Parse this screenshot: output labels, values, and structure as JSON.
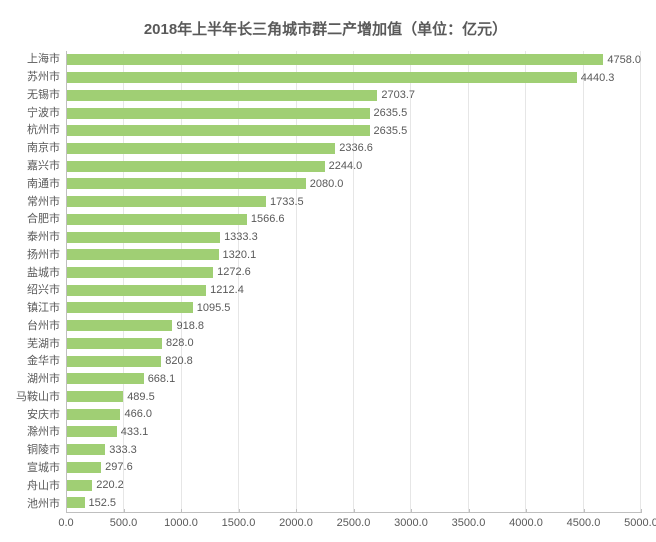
{
  "chart": {
    "type": "bar-horizontal",
    "title": "2018年上半年长三角城市群二产增加值（单位：亿元）",
    "title_fontsize": 15,
    "title_color": "#595959",
    "background_color": "#ffffff",
    "bar_color": "#a0cf74",
    "grid_color": "#e6e6e6",
    "axis_color": "#bfbfbf",
    "label_color": "#595959",
    "label_fontsize": 11,
    "xlim": [
      0,
      5000
    ],
    "xtick_step": 500,
    "xticks": [
      "0.0",
      "500.0",
      "1000.0",
      "1500.0",
      "2000.0",
      "2500.0",
      "3000.0",
      "3500.0",
      "4000.0",
      "4500.0",
      "5000.0"
    ],
    "categories": [
      "上海市",
      "苏州市",
      "无锡市",
      "宁波市",
      "杭州市",
      "南京市",
      "嘉兴市",
      "南通市",
      "常州市",
      "合肥市",
      "泰州市",
      "扬州市",
      "盐城市",
      "绍兴市",
      "镇江市",
      "台州市",
      "芜湖市",
      "金华市",
      "湖州市",
      "马鞍山市",
      "安庆市",
      "滁州市",
      "铜陵市",
      "宣城市",
      "舟山市",
      "池州市"
    ],
    "values": [
      4758.0,
      4440.3,
      2703.7,
      2635.5,
      2635.5,
      2336.6,
      2244.0,
      2080.0,
      1733.5,
      1566.6,
      1333.3,
      1320.1,
      1272.6,
      1212.4,
      1095.5,
      918.8,
      828.0,
      820.8,
      668.1,
      489.5,
      466.0,
      433.1,
      333.3,
      297.6,
      220.2,
      152.5
    ],
    "value_labels": [
      "4758.0",
      "4440.3",
      "2703.7",
      "2635.5",
      "2635.5",
      "2336.6",
      "2244.0",
      "2080.0",
      "1733.5",
      "1566.6",
      "1333.3",
      "1320.1",
      "1272.6",
      "1212.4",
      "1095.5",
      "918.8",
      "828.0",
      "820.8",
      "668.1",
      "489.5",
      "466.0",
      "433.1",
      "333.3",
      "297.6",
      "220.2",
      "152.5"
    ]
  }
}
